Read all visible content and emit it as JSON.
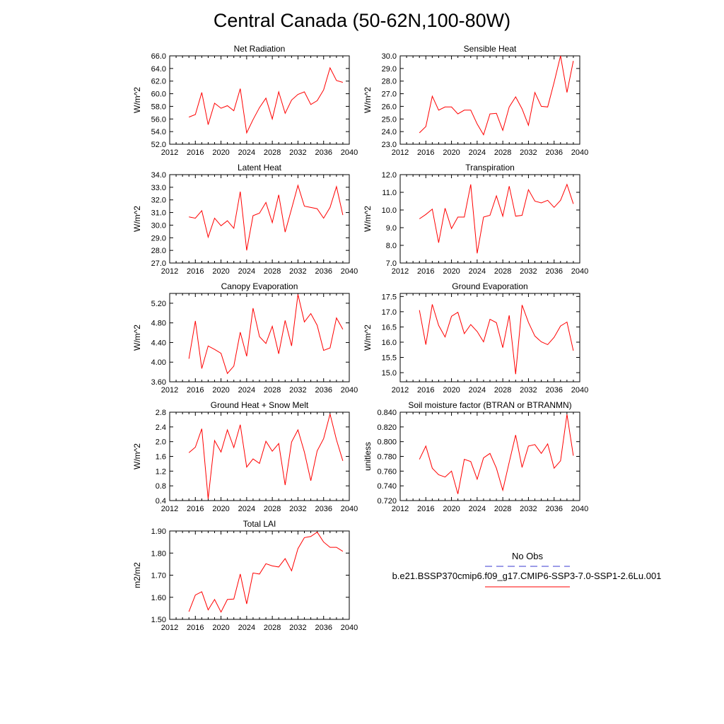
{
  "page": {
    "title": "Central Canada (50-62N,100-80W)"
  },
  "legend": {
    "obs_label": "No Obs",
    "obs_color": "#3a3ad0",
    "case_label": "b.e21.BSSP370cmip6.f09_g17.CMIP6-SSP3-7.0-SSP1-2.6Lu.001",
    "case_color": "#ff0000"
  },
  "chart_data": [
    {
      "type": "line",
      "title": "Net Radiation",
      "ylabel": "W/m^2",
      "xlim": [
        2012,
        2040
      ],
      "xticks": [
        "2012",
        "2016",
        "2020",
        "2024",
        "2028",
        "2032",
        "2036",
        "2040"
      ],
      "ylim": [
        52,
        66
      ],
      "yticks": [
        "52.0",
        "54.0",
        "56.0",
        "58.0",
        "60.0",
        "62.0",
        "64.0",
        "66.0"
      ],
      "series": [
        {
          "color": "#ff0000",
          "x": [
            2015,
            2016,
            2017,
            2018,
            2019,
            2020,
            2021,
            2022,
            2023,
            2024,
            2025,
            2026,
            2027,
            2028,
            2029,
            2030,
            2031,
            2032,
            2033,
            2034,
            2035,
            2036,
            2037,
            2038,
            2039
          ],
          "y": [
            56.3,
            56.7,
            60.2,
            55.1,
            58.5,
            57.7,
            58.1,
            57.3,
            60.8,
            53.8,
            55.9,
            57.8,
            59.3,
            56.0,
            60.3,
            56.9,
            59.0,
            59.9,
            60.3,
            58.3,
            58.9,
            60.6,
            64.1,
            62.1,
            61.8
          ]
        }
      ]
    },
    {
      "type": "line",
      "title": "Sensible Heat",
      "ylabel": "W/m^2",
      "xlim": [
        2012,
        2040
      ],
      "xticks": [
        "2012",
        "2016",
        "2020",
        "2024",
        "2028",
        "2032",
        "2036",
        "2040"
      ],
      "ylim": [
        23,
        30
      ],
      "yticks": [
        "23.0",
        "24.0",
        "25.0",
        "26.0",
        "27.0",
        "28.0",
        "29.0",
        "30.0"
      ],
      "series": [
        {
          "color": "#ff0000",
          "x": [
            2015,
            2016,
            2017,
            2018,
            2019,
            2020,
            2021,
            2022,
            2023,
            2024,
            2025,
            2026,
            2027,
            2028,
            2029,
            2030,
            2031,
            2032,
            2033,
            2034,
            2035,
            2036,
            2037,
            2038,
            2039
          ],
          "y": [
            23.9,
            24.4,
            26.8,
            25.7,
            25.95,
            25.95,
            25.4,
            25.7,
            25.7,
            24.6,
            23.75,
            25.4,
            25.45,
            24.1,
            25.95,
            26.75,
            25.8,
            24.5,
            27.1,
            26.0,
            25.95,
            27.9,
            30.0,
            27.1,
            29.6
          ]
        }
      ]
    },
    {
      "type": "line",
      "title": "Latent Heat",
      "ylabel": "W/m^2",
      "xlim": [
        2012,
        2040
      ],
      "xticks": [
        "2012",
        "2016",
        "2020",
        "2024",
        "2028",
        "2032",
        "2036",
        "2040"
      ],
      "ylim": [
        27,
        34
      ],
      "yticks": [
        "27.0",
        "28.0",
        "29.0",
        "30.0",
        "31.0",
        "32.0",
        "33.0",
        "34.0"
      ],
      "series": [
        {
          "color": "#ff0000",
          "x": [
            2015,
            2016,
            2017,
            2018,
            2019,
            2020,
            2021,
            2022,
            2023,
            2024,
            2025,
            2026,
            2027,
            2028,
            2029,
            2030,
            2031,
            2032,
            2033,
            2034,
            2035,
            2036,
            2037,
            2038,
            2039
          ],
          "y": [
            30.65,
            30.55,
            31.15,
            29.05,
            30.55,
            29.95,
            30.35,
            29.75,
            32.65,
            28.0,
            30.75,
            30.95,
            31.8,
            30.2,
            32.4,
            29.45,
            31.3,
            33.15,
            31.5,
            31.4,
            31.3,
            30.55,
            31.4,
            33.05,
            30.8
          ]
        }
      ]
    },
    {
      "type": "line",
      "title": "Transpiration",
      "ylabel": "W/m^2",
      "xlim": [
        2012,
        2040
      ],
      "xticks": [
        "2012",
        "2016",
        "2020",
        "2024",
        "2028",
        "2032",
        "2036",
        "2040"
      ],
      "ylim": [
        7,
        12
      ],
      "yticks": [
        "7.0",
        "8.0",
        "9.0",
        "10.0",
        "11.0",
        "12.0"
      ],
      "series": [
        {
          "color": "#ff0000",
          "x": [
            2015,
            2016,
            2017,
            2018,
            2019,
            2020,
            2021,
            2022,
            2023,
            2024,
            2025,
            2026,
            2027,
            2028,
            2029,
            2030,
            2031,
            2032,
            2033,
            2034,
            2035,
            2036,
            2037,
            2038,
            2039
          ],
          "y": [
            9.5,
            9.75,
            10.05,
            8.15,
            10.1,
            8.95,
            9.6,
            9.6,
            11.45,
            7.55,
            9.6,
            9.7,
            10.8,
            9.65,
            11.35,
            9.65,
            9.7,
            11.15,
            10.5,
            10.4,
            10.55,
            10.15,
            10.55,
            11.45,
            10.35
          ]
        }
      ]
    },
    {
      "type": "line",
      "title": "Canopy Evaporation",
      "ylabel": "W/m^2",
      "xlim": [
        2012,
        2040
      ],
      "xticks": [
        "2012",
        "2016",
        "2020",
        "2024",
        "2028",
        "2032",
        "2036",
        "2040"
      ],
      "ylim": [
        3.6,
        5.4
      ],
      "yticks": [
        "3.60",
        "4.00",
        "4.40",
        "4.80",
        "5.20"
      ],
      "series": [
        {
          "color": "#ff0000",
          "x": [
            2015,
            2016,
            2017,
            2018,
            2019,
            2020,
            2021,
            2022,
            2023,
            2024,
            2025,
            2026,
            2027,
            2028,
            2029,
            2030,
            2031,
            2032,
            2033,
            2034,
            2035,
            2036,
            2037,
            2038,
            2039
          ],
          "y": [
            4.07,
            4.84,
            3.87,
            4.33,
            4.26,
            4.18,
            3.77,
            3.92,
            4.61,
            4.12,
            5.1,
            4.52,
            4.38,
            4.73,
            4.17,
            4.85,
            4.33,
            5.38,
            4.82,
            4.99,
            4.75,
            4.24,
            4.29,
            4.9,
            4.67
          ]
        }
      ]
    },
    {
      "type": "line",
      "title": "Ground Evaporation",
      "ylabel": "W/m^2",
      "xlim": [
        2012,
        2040
      ],
      "xticks": [
        "2012",
        "2016",
        "2020",
        "2024",
        "2028",
        "2032",
        "2036",
        "2040"
      ],
      "ylim": [
        14.7,
        17.6
      ],
      "yticks": [
        "15.0",
        "15.5",
        "16.0",
        "16.5",
        "17.0",
        "17.5"
      ],
      "series": [
        {
          "color": "#ff0000",
          "x": [
            2015,
            2016,
            2017,
            2018,
            2019,
            2020,
            2021,
            2022,
            2023,
            2024,
            2025,
            2026,
            2027,
            2028,
            2029,
            2030,
            2031,
            2032,
            2033,
            2034,
            2035,
            2036,
            2037,
            2038,
            2039
          ],
          "y": [
            17.05,
            15.92,
            17.24,
            16.55,
            16.17,
            16.85,
            16.98,
            16.28,
            16.58,
            16.35,
            16.01,
            16.75,
            16.64,
            15.82,
            16.88,
            14.95,
            17.22,
            16.65,
            16.2,
            16.01,
            15.92,
            16.16,
            16.53,
            16.66,
            15.72
          ]
        }
      ]
    },
    {
      "type": "line",
      "title": "Ground Heat + Snow Melt",
      "ylabel": "W/m^2",
      "xlim": [
        2012,
        2040
      ],
      "xticks": [
        "2012",
        "2016",
        "2020",
        "2024",
        "2028",
        "2032",
        "2036",
        "2040"
      ],
      "ylim": [
        0.4,
        2.8
      ],
      "yticks": [
        "0.4",
        "0.8",
        "1.2",
        "1.6",
        "2.0",
        "2.4",
        "2.8"
      ],
      "series": [
        {
          "color": "#ff0000",
          "x": [
            2015,
            2016,
            2017,
            2018,
            2019,
            2020,
            2021,
            2022,
            2023,
            2024,
            2025,
            2026,
            2027,
            2028,
            2029,
            2030,
            2031,
            2032,
            2033,
            2034,
            2035,
            2036,
            2037,
            2038,
            2039
          ],
          "y": [
            1.7,
            1.85,
            2.35,
            0.45,
            2.03,
            1.72,
            2.32,
            1.84,
            2.46,
            1.31,
            1.53,
            1.41,
            2.01,
            1.74,
            1.95,
            0.82,
            1.99,
            2.32,
            1.72,
            0.94,
            1.75,
            2.08,
            2.75,
            2.05,
            1.48
          ]
        }
      ]
    },
    {
      "type": "line",
      "title": "Soil moisture factor (BTRAN or BTRANMN)",
      "ylabel": "unitless",
      "xlim": [
        2012,
        2040
      ],
      "xticks": [
        "2012",
        "2016",
        "2020",
        "2024",
        "2028",
        "2032",
        "2036",
        "2040"
      ],
      "ylim": [
        0.72,
        0.84
      ],
      "yticks": [
        "0.720",
        "0.740",
        "0.760",
        "0.780",
        "0.800",
        "0.820",
        "0.840"
      ],
      "series": [
        {
          "color": "#ff0000",
          "x": [
            2015,
            2016,
            2017,
            2018,
            2019,
            2020,
            2021,
            2022,
            2023,
            2024,
            2025,
            2026,
            2027,
            2028,
            2029,
            2030,
            2031,
            2032,
            2033,
            2034,
            2035,
            2036,
            2037,
            2038,
            2039
          ],
          "y": [
            0.776,
            0.794,
            0.764,
            0.755,
            0.752,
            0.76,
            0.729,
            0.776,
            0.773,
            0.749,
            0.778,
            0.784,
            0.764,
            0.734,
            0.772,
            0.809,
            0.765,
            0.794,
            0.796,
            0.784,
            0.797,
            0.764,
            0.774,
            0.837,
            0.781
          ]
        }
      ]
    },
    {
      "type": "line",
      "title": "Total LAI",
      "ylabel": "m2/m2",
      "xlim": [
        2012,
        2040
      ],
      "xticks": [
        "2012",
        "2016",
        "2020",
        "2024",
        "2028",
        "2032",
        "2036",
        "2040"
      ],
      "ylim": [
        1.5,
        1.9
      ],
      "yticks": [
        "1.50",
        "1.60",
        "1.70",
        "1.80",
        "1.90"
      ],
      "series": [
        {
          "color": "#ff0000",
          "x": [
            2015,
            2016,
            2017,
            2018,
            2019,
            2020,
            2021,
            2022,
            2023,
            2024,
            2025,
            2026,
            2027,
            2028,
            2029,
            2030,
            2031,
            2032,
            2033,
            2034,
            2035,
            2036,
            2037,
            2038,
            2039
          ],
          "y": [
            1.535,
            1.61,
            1.625,
            1.543,
            1.59,
            1.533,
            1.59,
            1.592,
            1.705,
            1.57,
            1.71,
            1.705,
            1.752,
            1.742,
            1.737,
            1.775,
            1.72,
            1.82,
            1.87,
            1.875,
            1.895,
            1.85,
            1.826,
            1.826,
            1.808
          ]
        }
      ]
    }
  ]
}
